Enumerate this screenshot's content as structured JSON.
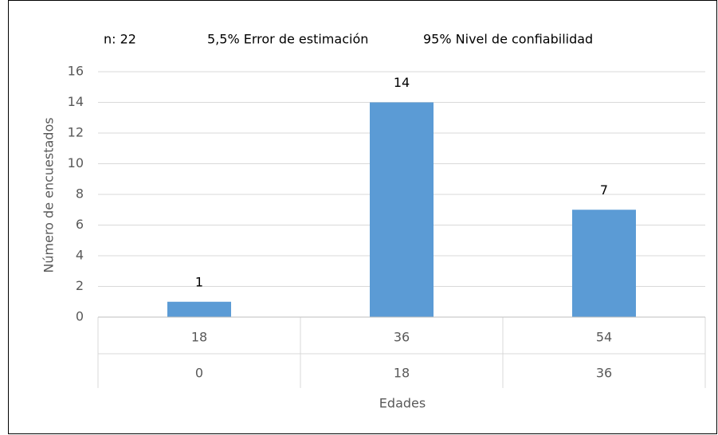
{
  "chart_data": {
    "type": "bar",
    "annotations": [
      "n: 22",
      "5,5% Error de estimación",
      "95% Nivel de confiabilidad"
    ],
    "categories": [
      "18",
      "36",
      "54"
    ],
    "categories2": [
      "0",
      "18",
      "36"
    ],
    "values": [
      1,
      14,
      7
    ],
    "color": "#5b9bd5",
    "xlabel": "Edades",
    "ylabel": "Número de encuestados",
    "ylim": [
      0,
      16
    ],
    "yticks": [
      0,
      2,
      4,
      6,
      8,
      10,
      12,
      14,
      16
    ],
    "grid": true
  }
}
